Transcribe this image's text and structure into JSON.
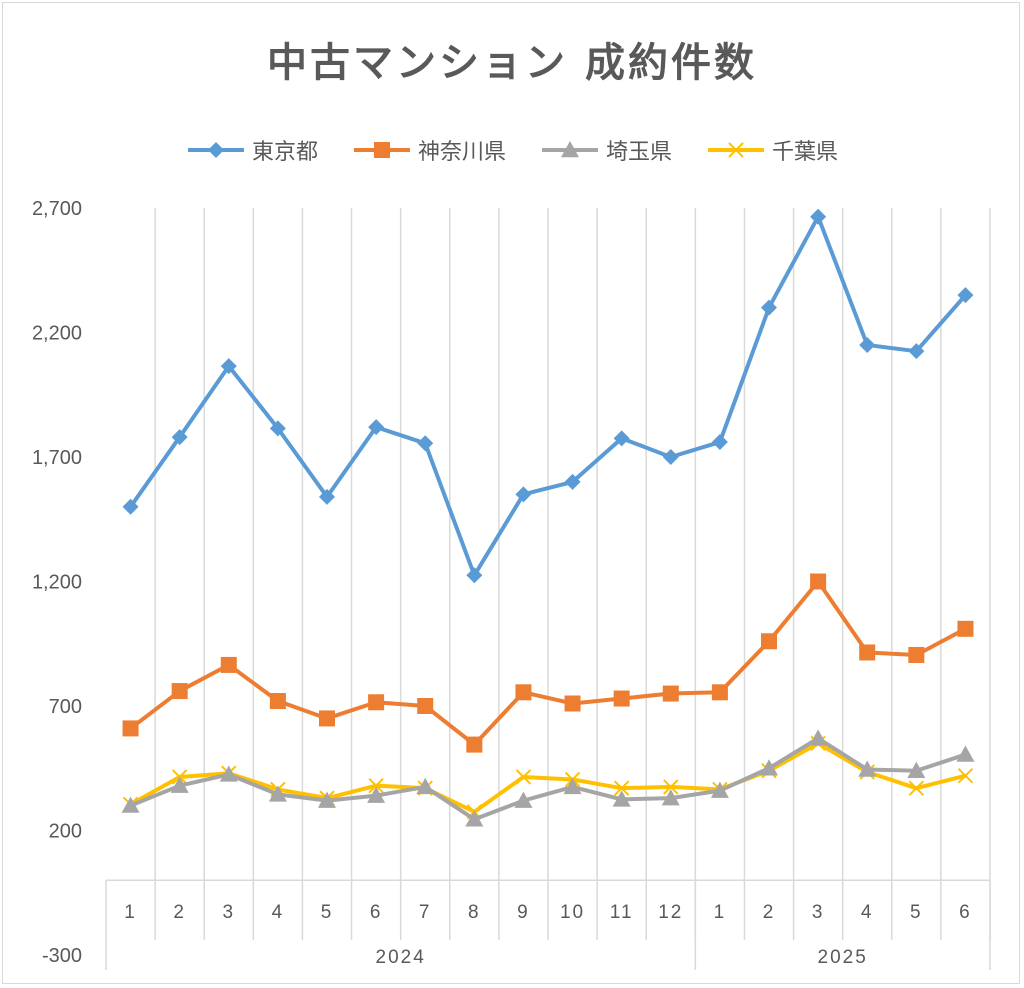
{
  "chart_data": {
    "type": "line",
    "title": "中古マンション 成約件数",
    "categories": [
      "1",
      "2",
      "3",
      "4",
      "5",
      "6",
      "7",
      "8",
      "9",
      "10",
      "11",
      "12",
      "1",
      "2",
      "3",
      "4",
      "5",
      "6"
    ],
    "groups": [
      {
        "label": "2024",
        "count": 12
      },
      {
        "label": "2025",
        "count": 6
      }
    ],
    "ylim": [
      -300,
      2700
    ],
    "yticks": [
      "2,700",
      "2,200",
      "1,700",
      "1,200",
      "700",
      "200",
      "-300"
    ],
    "ytick_values": [
      2700,
      2200,
      1700,
      1200,
      700,
      200,
      -300
    ],
    "grid": "vertical",
    "legend_position": "top",
    "series": [
      {
        "name": "東京都",
        "color": "#5b9bd5",
        "marker": "diamond",
        "values": [
          1500,
          1780,
          2065,
          1815,
          1540,
          1820,
          1755,
          1225,
          1550,
          1600,
          1775,
          1700,
          1760,
          2300,
          2665,
          2150,
          2125,
          2350
        ]
      },
      {
        "name": "神奈川県",
        "color": "#ed7d31",
        "marker": "square",
        "values": [
          610,
          760,
          865,
          720,
          650,
          715,
          700,
          545,
          755,
          710,
          730,
          750,
          755,
          960,
          1200,
          915,
          905,
          1010
        ]
      },
      {
        "name": "埼玉県",
        "color": "#a5a5a5",
        "marker": "triangle",
        "values": [
          300,
          380,
          425,
          345,
          320,
          340,
          375,
          245,
          320,
          375,
          325,
          330,
          360,
          450,
          570,
          445,
          440,
          505
        ]
      },
      {
        "name": "千葉県",
        "color": "#ffc000",
        "marker": "x",
        "values": [
          305,
          415,
          430,
          365,
          330,
          380,
          370,
          275,
          415,
          405,
          370,
          375,
          365,
          440,
          550,
          435,
          370,
          420
        ]
      }
    ]
  }
}
